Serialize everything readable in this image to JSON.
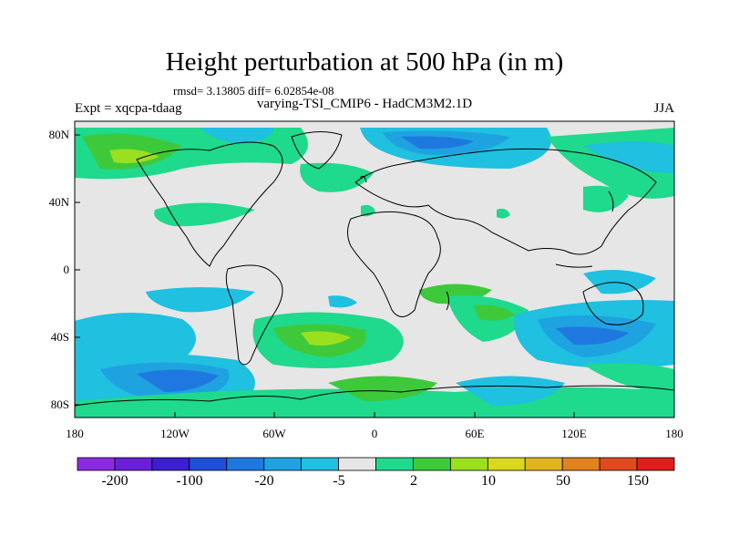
{
  "title": "Height perturbation at 500 hPa (in m)",
  "stats": "rmsd= 3.13805 diff= 6.02854e-08",
  "expt": "Expt = xqcpa-tdaag",
  "subtitle": "varying-TSI_CMIP6 - HadCM3M2.1D",
  "season": "JJA",
  "axes": {
    "lat_labels": [
      "80N",
      "40N",
      "0",
      "40S",
      "80S"
    ],
    "lon_labels": [
      "180",
      "120W",
      "60W",
      "0",
      "60E",
      "120E",
      "180"
    ]
  },
  "colorbar": {
    "labels": [
      "-200",
      "-100",
      "-20",
      "-5",
      "2",
      "10",
      "50",
      "150"
    ],
    "colors": [
      "#8a2be2",
      "#6a1fd8",
      "#3b1fd0",
      "#1e4fd8",
      "#1f78e0",
      "#1fa3e0",
      "#1fc0e0",
      "#e6e6e6",
      "#1fd98c",
      "#3ec93a",
      "#9be01e",
      "#d8d81e",
      "#e0b41e",
      "#e0821e",
      "#e04a1e",
      "#e01e1e"
    ]
  },
  "colors": {
    "neutral": "#e6e6e6",
    "cyan": "#1fc0e0",
    "light_blue": "#1fa3e0",
    "blue": "#1f78e0",
    "teal": "#1fd98c",
    "green": "#3ec93a",
    "lime": "#9be01e"
  }
}
